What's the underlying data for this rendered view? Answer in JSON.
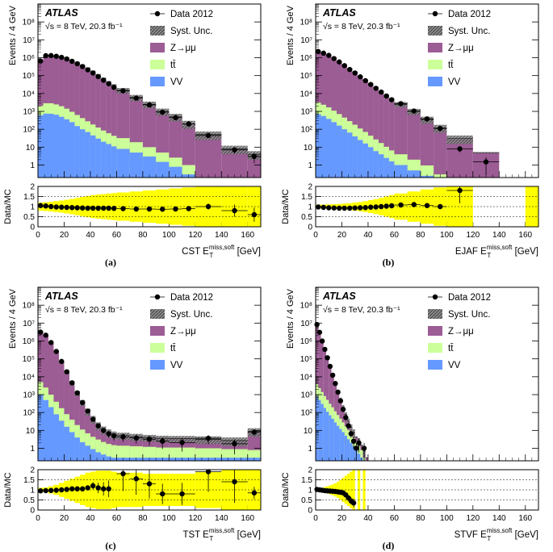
{
  "chart_data": [
    {
      "type": "bar",
      "panel_label": "(a)",
      "title": "",
      "experiment": "ATLAS",
      "energy_lumi": "√s = 8 TeV, 20.3 fb⁻¹",
      "xlabel_name": "CST",
      "xlabel_var": "E",
      "xlabel_sub": "T",
      "xlabel_sup": "miss,soft",
      "xlabel_unit": "[GeV]",
      "ylabel": "Events / 4 GeV",
      "ratio_ylabel": "Data/MC",
      "xlim": [
        0,
        170
      ],
      "ylim_log": [
        0.2,
        1000000000
      ],
      "ratio_ylim": [
        0,
        2
      ],
      "x_ticks": [
        "0",
        "20",
        "40",
        "60",
        "80",
        "100",
        "120",
        "140",
        "160"
      ],
      "y_ticks": [
        "1",
        "10",
        "10²",
        "10³",
        "10⁴",
        "10⁵",
        "10⁶",
        "10⁷",
        "10⁸"
      ],
      "ratio_ticks": [
        "0",
        "0.5",
        "1",
        "1.5",
        "2"
      ],
      "legend": [
        "Data 2012",
        "Syst. Unc.",
        "Z→μμ",
        "tt̄",
        "VV"
      ],
      "bin_edges": [
        0,
        4,
        8,
        12,
        16,
        20,
        24,
        28,
        32,
        36,
        40,
        44,
        48,
        52,
        56,
        60,
        70,
        80,
        90,
        100,
        110,
        120,
        140,
        160,
        170
      ],
      "series": [
        {
          "name": "VV",
          "values": [
            600,
            750,
            740,
            650,
            500,
            360,
            250,
            150,
            100,
            70,
            45,
            30,
            20,
            15,
            11,
            8,
            5,
            3,
            1.5,
            0.8,
            0.3,
            0,
            0,
            0
          ]
        },
        {
          "name": "tt̄",
          "values": [
            1400,
            2100,
            2100,
            1800,
            1450,
            1050,
            700,
            480,
            320,
            210,
            140,
            95,
            65,
            45,
            32,
            24,
            14,
            7,
            3.5,
            1.8,
            0.7,
            0.2,
            0,
            0
          ]
        },
        {
          "name": "Z→μμ",
          "values": [
            600000,
            1200000,
            1280000,
            1200000,
            1050000,
            850000,
            650000,
            480000,
            340000,
            230000,
            150000,
            95000,
            60000,
            38000,
            25000,
            15000,
            6000,
            2500,
            1000,
            500,
            200,
            50,
            8,
            4
          ]
        }
      ],
      "data": {
        "name": "Data 2012",
        "values": [
          650000,
          1300000,
          1320000,
          1200000,
          1050000,
          850000,
          630000,
          460000,
          320000,
          210000,
          140000,
          88000,
          55000,
          35000,
          22000,
          14000,
          5500,
          2300,
          900,
          450,
          200,
          45,
          7,
          3
        ]
      },
      "ratio": [
        1.05,
        1.03,
        1.0,
        0.98,
        0.97,
        0.96,
        0.95,
        0.94,
        0.93,
        0.92,
        0.92,
        0.92,
        0.92,
        0.92,
        0.91,
        0.9,
        0.88,
        0.88,
        0.87,
        0.88,
        0.9,
        1.0,
        0.8,
        0.6
      ],
      "syst_band": [
        0.2,
        0.22,
        0.24,
        0.27,
        0.3,
        0.34,
        0.38,
        0.43,
        0.48,
        0.53,
        0.57,
        0.6,
        0.62,
        0.65,
        0.67,
        0.7,
        0.75,
        0.8,
        0.85,
        0.9,
        0.95,
        1.0,
        1.0,
        1.0
      ]
    },
    {
      "type": "bar",
      "panel_label": "(b)",
      "title": "",
      "experiment": "ATLAS",
      "energy_lumi": "√s = 8 TeV, 20.3 fb⁻¹",
      "xlabel_name": "EJAF",
      "xlabel_var": "E",
      "xlabel_sub": "T",
      "xlabel_sup": "miss,soft",
      "xlabel_unit": "[GeV]",
      "ylabel": "Events / 4 GeV",
      "ratio_ylabel": "Data/MC",
      "xlim": [
        0,
        170
      ],
      "ylim_log": [
        0.2,
        1000000000
      ],
      "ratio_ylim": [
        0,
        2
      ],
      "x_ticks": [
        "0",
        "20",
        "40",
        "60",
        "80",
        "100",
        "120",
        "140",
        "160"
      ],
      "y_ticks": [
        "1",
        "10",
        "10²",
        "10³",
        "10⁴",
        "10⁵",
        "10⁶",
        "10⁷",
        "10⁸"
      ],
      "ratio_ticks": [
        "0",
        "0.5",
        "1",
        "1.5",
        "2"
      ],
      "legend": [
        "Data 2012",
        "Syst. Unc.",
        "Z→μμ",
        "tt̄",
        "VV"
      ],
      "bin_edges": [
        0,
        4,
        8,
        12,
        16,
        20,
        24,
        28,
        32,
        36,
        40,
        44,
        48,
        52,
        56,
        60,
        70,
        80,
        90,
        100,
        120,
        140,
        160,
        170
      ],
      "series": [
        {
          "name": "VV",
          "values": [
            700,
            550,
            380,
            250,
            160,
            100,
            65,
            40,
            25,
            16,
            10,
            6,
            4,
            2.5,
            1.6,
            1.0,
            0.5,
            0.25,
            0,
            0,
            0,
            0,
            0
          ]
        },
        {
          "name": "tt̄",
          "values": [
            2400,
            1800,
            1300,
            850,
            550,
            350,
            220,
            140,
            85,
            55,
            34,
            21,
            13,
            8,
            5,
            3,
            1.5,
            0.7,
            0.3,
            0,
            0,
            0,
            0
          ]
        },
        {
          "name": "Z→μμ",
          "values": [
            2300000,
            1900000,
            1400000,
            950000,
            620000,
            390000,
            240000,
            150000,
            90000,
            55000,
            33000,
            20000,
            12000,
            7000,
            4300,
            2500,
            1000,
            350,
            120,
            30,
            5,
            0,
            0
          ]
        }
      ],
      "data": {
        "name": "Data 2012",
        "values": [
          2200000,
          1800000,
          1350000,
          900000,
          580000,
          360000,
          220000,
          140000,
          85000,
          52000,
          32000,
          19500,
          12000,
          7200,
          4500,
          2700,
          1050,
          380,
          110,
          8,
          1.5,
          0,
          0
        ]
      },
      "ratio": [
        0.98,
        0.96,
        0.94,
        0.93,
        0.92,
        0.92,
        0.92,
        0.93,
        0.94,
        0.95,
        0.97,
        0.98,
        1.0,
        1.02,
        1.04,
        1.08,
        1.1,
        1.05,
        1.0,
        1.8,
        null,
        null,
        null
      ],
      "syst_band": [
        0.1,
        0.1,
        0.11,
        0.12,
        0.13,
        0.15,
        0.17,
        0.2,
        0.23,
        0.27,
        0.32,
        0.37,
        0.43,
        0.5,
        0.57,
        0.65,
        0.75,
        0.85,
        0.95,
        1.0,
        0,
        0,
        1.0
      ]
    },
    {
      "type": "bar",
      "panel_label": "(c)",
      "title": "",
      "experiment": "ATLAS",
      "energy_lumi": "√s = 8 TeV, 20.3 fb⁻¹",
      "xlabel_name": "TST",
      "xlabel_var": "E",
      "xlabel_sub": "T",
      "xlabel_sup": "miss,soft",
      "xlabel_unit": "[GeV]",
      "ylabel": "Events / 4 GeV",
      "ratio_ylabel": "Data/MC",
      "xlim": [
        0,
        170
      ],
      "ylim_log": [
        0.2,
        1000000000
      ],
      "ratio_ylim": [
        0,
        2
      ],
      "x_ticks": [
        "0",
        "20",
        "40",
        "60",
        "80",
        "100",
        "120",
        "140",
        "160"
      ],
      "y_ticks": [
        "1",
        "10",
        "10²",
        "10³",
        "10⁴",
        "10⁵",
        "10⁶",
        "10⁷",
        "10⁸"
      ],
      "ratio_ticks": [
        "0",
        "0.5",
        "1",
        "1.5",
        "2"
      ],
      "legend": [
        "Data 2012",
        "Syst. Unc.",
        "Z→μμ",
        "tt̄",
        "VV"
      ],
      "bin_edges": [
        0,
        4,
        8,
        12,
        16,
        20,
        24,
        28,
        32,
        36,
        40,
        44,
        48,
        52,
        56,
        60,
        70,
        80,
        90,
        100,
        120,
        140,
        160,
        170
      ],
      "series": [
        {
          "name": "VV",
          "values": [
            1000,
            500,
            200,
            80,
            35,
            16,
            8,
            4,
            2.2,
            1.4,
            0.9,
            0.6,
            0.45,
            0.35,
            0.3,
            0.3,
            0.3,
            0.3,
            0.3,
            0.3,
            0.3,
            0.3,
            0.3
          ]
        },
        {
          "name": "tt̄",
          "values": [
            4000,
            2000,
            800,
            320,
            140,
            65,
            32,
            16,
            9,
            5.5,
            3.5,
            2.5,
            1.8,
            1.4,
            1.2,
            1.1,
            1.0,
            0.9,
            0.8,
            0.8,
            0.7,
            0.6,
            0.5
          ]
        },
        {
          "name": "Z→μμ",
          "values": [
            3000000,
            2000000,
            800000,
            250000,
            70000,
            18000,
            4500,
            1200,
            350,
            110,
            40,
            16,
            9,
            6,
            4.5,
            3.8,
            3.2,
            2.8,
            2.5,
            2.4,
            2.2,
            1.8,
            8
          ]
        }
      ],
      "data": {
        "name": "Data 2012",
        "values": [
          3100000,
          2100000,
          820000,
          260000,
          72000,
          19000,
          4600,
          1250,
          360,
          120,
          42,
          18,
          10,
          6.5,
          5,
          4.4,
          3.8,
          3.2,
          2.5,
          2.1,
          3.6,
          1.8,
          8
        ]
      },
      "ratio": [
        0.95,
        0.96,
        0.97,
        0.98,
        1.0,
        1.02,
        1.05,
        1.05,
        1.05,
        1.1,
        1.2,
        1.1,
        1.05,
        1.05,
        null,
        1.8,
        1.55,
        1.3,
        0.8,
        0.8,
        1.9,
        1.4,
        0.85
      ],
      "syst_band": [
        0.1,
        0.12,
        0.18,
        0.25,
        0.35,
        0.45,
        0.55,
        0.65,
        0.75,
        0.85,
        0.9,
        0.95,
        0.95,
        0.95,
        0.9,
        0.85,
        0.85,
        0.8,
        0.8,
        0.8,
        0.9,
        1.0,
        1.0
      ]
    },
    {
      "type": "bar",
      "panel_label": "(d)",
      "title": "",
      "experiment": "ATLAS",
      "energy_lumi": "√s = 8 TeV, 20.3 fb⁻¹",
      "xlabel_name": "STVF",
      "xlabel_var": "E",
      "xlabel_sub": "T",
      "xlabel_sup": "miss,soft",
      "xlabel_unit": "[GeV]",
      "ylabel": "Events / 4 GeV",
      "ratio_ylabel": "Data/MC",
      "xlim": [
        0,
        170
      ],
      "ylim_log": [
        0.2,
        1000000000
      ],
      "ratio_ylim": [
        0,
        2
      ],
      "x_ticks": [
        "0",
        "20",
        "40",
        "60",
        "80",
        "100",
        "120",
        "140",
        "160"
      ],
      "y_ticks": [
        "1",
        "10",
        "10²",
        "10³",
        "10⁴",
        "10⁵",
        "10⁶",
        "10⁷",
        "10⁸"
      ],
      "ratio_ticks": [
        "0",
        "0.5",
        "1",
        "1.5",
        "2"
      ],
      "legend": [
        "Data 2012",
        "Syst. Unc.",
        "Z→μμ",
        "tt̄",
        "VV"
      ],
      "bin_edges": [
        0,
        2,
        4,
        6,
        8,
        10,
        12,
        14,
        16,
        18,
        20,
        22,
        24,
        26,
        28,
        30,
        32,
        34,
        36,
        38,
        40,
        42,
        44,
        46,
        48,
        50,
        52,
        54,
        56,
        58,
        60
      ],
      "series": [
        {
          "name": "VV",
          "values": [
            800,
            500,
            300,
            180,
            110,
            70,
            45,
            28,
            18,
            12,
            8,
            5,
            3.2,
            2,
            1.3,
            0.8,
            0.5,
            0.3,
            0,
            0,
            0,
            0,
            0,
            0,
            0,
            0,
            0,
            0,
            0,
            0
          ]
        },
        {
          "name": "tt̄",
          "values": [
            3000,
            1800,
            1100,
            650,
            400,
            240,
            150,
            90,
            55,
            33,
            20,
            12,
            7,
            4.2,
            2.5,
            1.5,
            0.9,
            0.5,
            0.3,
            0,
            0,
            0,
            0,
            0,
            0,
            0,
            0,
            0,
            0,
            0
          ]
        },
        {
          "name": "Z→μμ",
          "values": [
            8000000,
            3000000,
            1000000,
            350000,
            120000,
            40000,
            13000,
            4500,
            1500,
            500,
            170,
            60,
            22,
            9,
            4,
            2,
            1.1,
            0.7,
            0.4,
            0.3,
            0.2,
            0,
            0,
            0,
            0,
            0,
            0,
            0,
            0,
            0
          ]
        }
      ],
      "data": {
        "name": "Data 2012",
        "values": [
          8300000,
          3050000,
          990000,
          340000,
          115000,
          38000,
          12200,
          4200,
          1380,
          450,
          150,
          52,
          18,
          6.5,
          2.5,
          1,
          2,
          0,
          1,
          0,
          0,
          0,
          0,
          0,
          0,
          0,
          0,
          0,
          0,
          0
        ]
      },
      "ratio": [
        1.02,
        1.0,
        0.98,
        0.96,
        0.95,
        0.94,
        0.93,
        0.92,
        0.9,
        0.88,
        0.85,
        0.75,
        0.6,
        0.45,
        0.35,
        null,
        null,
        null,
        null,
        null,
        null,
        null,
        null,
        null,
        null,
        null,
        null,
        null,
        null,
        null
      ],
      "syst_band": [
        0.05,
        0.08,
        0.1,
        0.14,
        0.18,
        0.22,
        0.27,
        0.33,
        0.4,
        0.5,
        0.6,
        0.7,
        0.8,
        0.9,
        1.0,
        0,
        1,
        0,
        1,
        0,
        0,
        0,
        0,
        0,
        0,
        0,
        0,
        0,
        0,
        0
      ]
    }
  ],
  "colors": {
    "z": "#9c5c94",
    "tt": "#ccff99",
    "vv": "#6699ff",
    "band": "#ffff00",
    "data": "#000000"
  }
}
